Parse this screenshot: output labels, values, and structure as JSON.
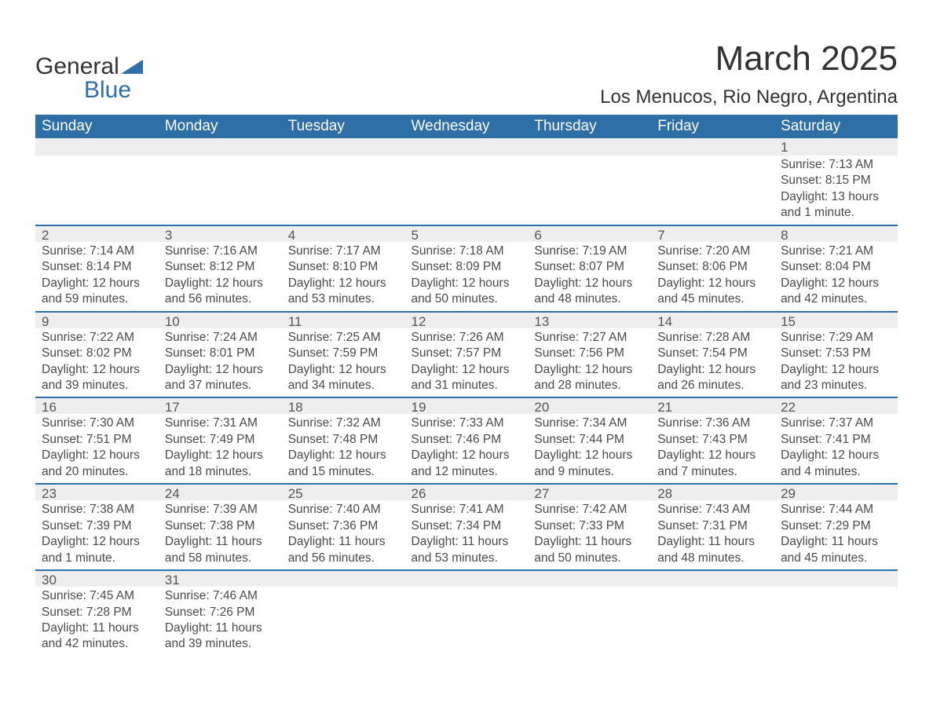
{
  "brand": {
    "name1": "General",
    "name2": "Blue"
  },
  "title": "March 2025",
  "location": "Los Menucos, Rio Negro, Argentina",
  "colors": {
    "header_bg": "#2f6fa7",
    "header_text": "#ffffff",
    "daynum_bg": "#eeeeee",
    "border": "#2f6fa7",
    "body_text": "#4a4a4a",
    "page_bg": "#ffffff"
  },
  "typography": {
    "title_fontsize": 44,
    "location_fontsize": 24,
    "dayheader_fontsize": 19,
    "cell_fontsize": 15.5
  },
  "day_headers": [
    "Sunday",
    "Monday",
    "Tuesday",
    "Wednesday",
    "Thursday",
    "Friday",
    "Saturday"
  ],
  "weeks": [
    [
      null,
      null,
      null,
      null,
      null,
      null,
      {
        "n": "1",
        "sr": "Sunrise: 7:13 AM",
        "ss": "Sunset: 8:15 PM",
        "dl": "Daylight: 13 hours and 1 minute."
      }
    ],
    [
      {
        "n": "2",
        "sr": "Sunrise: 7:14 AM",
        "ss": "Sunset: 8:14 PM",
        "dl": "Daylight: 12 hours and 59 minutes."
      },
      {
        "n": "3",
        "sr": "Sunrise: 7:16 AM",
        "ss": "Sunset: 8:12 PM",
        "dl": "Daylight: 12 hours and 56 minutes."
      },
      {
        "n": "4",
        "sr": "Sunrise: 7:17 AM",
        "ss": "Sunset: 8:10 PM",
        "dl": "Daylight: 12 hours and 53 minutes."
      },
      {
        "n": "5",
        "sr": "Sunrise: 7:18 AM",
        "ss": "Sunset: 8:09 PM",
        "dl": "Daylight: 12 hours and 50 minutes."
      },
      {
        "n": "6",
        "sr": "Sunrise: 7:19 AM",
        "ss": "Sunset: 8:07 PM",
        "dl": "Daylight: 12 hours and 48 minutes."
      },
      {
        "n": "7",
        "sr": "Sunrise: 7:20 AM",
        "ss": "Sunset: 8:06 PM",
        "dl": "Daylight: 12 hours and 45 minutes."
      },
      {
        "n": "8",
        "sr": "Sunrise: 7:21 AM",
        "ss": "Sunset: 8:04 PM",
        "dl": "Daylight: 12 hours and 42 minutes."
      }
    ],
    [
      {
        "n": "9",
        "sr": "Sunrise: 7:22 AM",
        "ss": "Sunset: 8:02 PM",
        "dl": "Daylight: 12 hours and 39 minutes."
      },
      {
        "n": "10",
        "sr": "Sunrise: 7:24 AM",
        "ss": "Sunset: 8:01 PM",
        "dl": "Daylight: 12 hours and 37 minutes."
      },
      {
        "n": "11",
        "sr": "Sunrise: 7:25 AM",
        "ss": "Sunset: 7:59 PM",
        "dl": "Daylight: 12 hours and 34 minutes."
      },
      {
        "n": "12",
        "sr": "Sunrise: 7:26 AM",
        "ss": "Sunset: 7:57 PM",
        "dl": "Daylight: 12 hours and 31 minutes."
      },
      {
        "n": "13",
        "sr": "Sunrise: 7:27 AM",
        "ss": "Sunset: 7:56 PM",
        "dl": "Daylight: 12 hours and 28 minutes."
      },
      {
        "n": "14",
        "sr": "Sunrise: 7:28 AM",
        "ss": "Sunset: 7:54 PM",
        "dl": "Daylight: 12 hours and 26 minutes."
      },
      {
        "n": "15",
        "sr": "Sunrise: 7:29 AM",
        "ss": "Sunset: 7:53 PM",
        "dl": "Daylight: 12 hours and 23 minutes."
      }
    ],
    [
      {
        "n": "16",
        "sr": "Sunrise: 7:30 AM",
        "ss": "Sunset: 7:51 PM",
        "dl": "Daylight: 12 hours and 20 minutes."
      },
      {
        "n": "17",
        "sr": "Sunrise: 7:31 AM",
        "ss": "Sunset: 7:49 PM",
        "dl": "Daylight: 12 hours and 18 minutes."
      },
      {
        "n": "18",
        "sr": "Sunrise: 7:32 AM",
        "ss": "Sunset: 7:48 PM",
        "dl": "Daylight: 12 hours and 15 minutes."
      },
      {
        "n": "19",
        "sr": "Sunrise: 7:33 AM",
        "ss": "Sunset: 7:46 PM",
        "dl": "Daylight: 12 hours and 12 minutes."
      },
      {
        "n": "20",
        "sr": "Sunrise: 7:34 AM",
        "ss": "Sunset: 7:44 PM",
        "dl": "Daylight: 12 hours and 9 minutes."
      },
      {
        "n": "21",
        "sr": "Sunrise: 7:36 AM",
        "ss": "Sunset: 7:43 PM",
        "dl": "Daylight: 12 hours and 7 minutes."
      },
      {
        "n": "22",
        "sr": "Sunrise: 7:37 AM",
        "ss": "Sunset: 7:41 PM",
        "dl": "Daylight: 12 hours and 4 minutes."
      }
    ],
    [
      {
        "n": "23",
        "sr": "Sunrise: 7:38 AM",
        "ss": "Sunset: 7:39 PM",
        "dl": "Daylight: 12 hours and 1 minute."
      },
      {
        "n": "24",
        "sr": "Sunrise: 7:39 AM",
        "ss": "Sunset: 7:38 PM",
        "dl": "Daylight: 11 hours and 58 minutes."
      },
      {
        "n": "25",
        "sr": "Sunrise: 7:40 AM",
        "ss": "Sunset: 7:36 PM",
        "dl": "Daylight: 11 hours and 56 minutes."
      },
      {
        "n": "26",
        "sr": "Sunrise: 7:41 AM",
        "ss": "Sunset: 7:34 PM",
        "dl": "Daylight: 11 hours and 53 minutes."
      },
      {
        "n": "27",
        "sr": "Sunrise: 7:42 AM",
        "ss": "Sunset: 7:33 PM",
        "dl": "Daylight: 11 hours and 50 minutes."
      },
      {
        "n": "28",
        "sr": "Sunrise: 7:43 AM",
        "ss": "Sunset: 7:31 PM",
        "dl": "Daylight: 11 hours and 48 minutes."
      },
      {
        "n": "29",
        "sr": "Sunrise: 7:44 AM",
        "ss": "Sunset: 7:29 PM",
        "dl": "Daylight: 11 hours and 45 minutes."
      }
    ],
    [
      {
        "n": "30",
        "sr": "Sunrise: 7:45 AM",
        "ss": "Sunset: 7:28 PM",
        "dl": "Daylight: 11 hours and 42 minutes."
      },
      {
        "n": "31",
        "sr": "Sunrise: 7:46 AM",
        "ss": "Sunset: 7:26 PM",
        "dl": "Daylight: 11 hours and 39 minutes."
      },
      null,
      null,
      null,
      null,
      null
    ]
  ]
}
